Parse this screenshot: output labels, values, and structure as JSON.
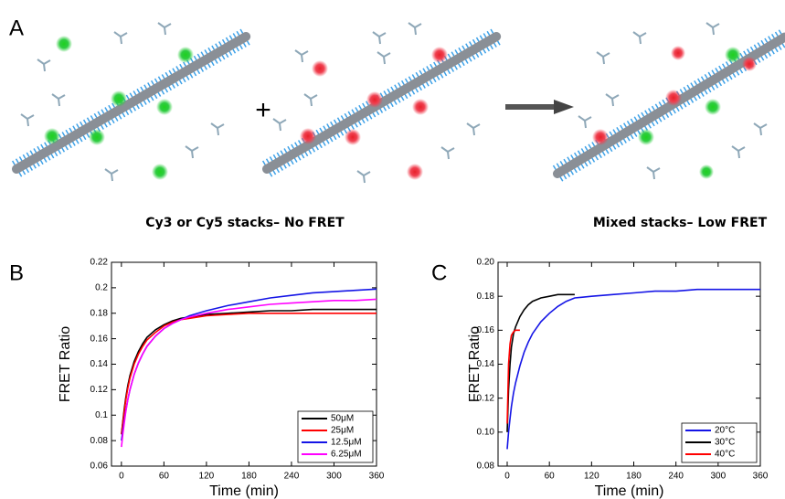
{
  "panel_a": {
    "label": "A",
    "plus": "+",
    "captions": [
      "Cy3 or Cy5 stacks– No FRET",
      "Mixed stacks– Low FRET"
    ]
  },
  "chart_data": [
    {
      "type": "line",
      "panel_label": "B",
      "x_label": "Time (min)",
      "y_label": "FRET Ratio",
      "x": [
        0,
        2,
        4,
        6,
        9,
        12,
        18,
        24,
        30,
        36,
        48,
        60,
        72,
        84,
        96,
        120,
        150,
        180,
        210,
        240,
        270,
        300,
        330,
        360
      ],
      "series": [
        {
          "name": "50μM",
          "color": "#000000",
          "values": [
            0.085,
            0.095,
            0.105,
            0.113,
            0.123,
            0.131,
            0.142,
            0.15,
            0.156,
            0.161,
            0.167,
            0.171,
            0.174,
            0.176,
            0.177,
            0.179,
            0.18,
            0.181,
            0.182,
            0.182,
            0.183,
            0.183,
            0.183,
            0.183
          ]
        },
        {
          "name": "25μM",
          "color": "#ff0000",
          "values": [
            0.085,
            0.094,
            0.103,
            0.111,
            0.121,
            0.129,
            0.14,
            0.148,
            0.154,
            0.159,
            0.165,
            0.17,
            0.173,
            0.175,
            0.176,
            0.178,
            0.179,
            0.18,
            0.18,
            0.18,
            0.18,
            0.18,
            0.18,
            0.18
          ]
        },
        {
          "name": "12.5μM",
          "color": "#1414e6",
          "values": [
            0.08,
            0.088,
            0.096,
            0.103,
            0.112,
            0.12,
            0.132,
            0.141,
            0.148,
            0.154,
            0.162,
            0.168,
            0.172,
            0.175,
            0.178,
            0.182,
            0.186,
            0.189,
            0.192,
            0.194,
            0.196,
            0.197,
            0.198,
            0.199
          ]
        },
        {
          "name": "6.25μM",
          "color": "#ff00ff",
          "values": [
            0.075,
            0.085,
            0.094,
            0.102,
            0.112,
            0.12,
            0.132,
            0.141,
            0.148,
            0.154,
            0.162,
            0.168,
            0.172,
            0.175,
            0.177,
            0.18,
            0.183,
            0.185,
            0.187,
            0.188,
            0.189,
            0.19,
            0.19,
            0.191
          ]
        }
      ],
      "xlim": [
        -14,
        360
      ],
      "ylim": [
        0.06,
        0.22
      ],
      "xticks": [
        0,
        60,
        120,
        180,
        240,
        300,
        360
      ],
      "yticks": [
        0.06,
        0.08,
        0.1,
        0.12,
        0.14,
        0.16,
        0.18,
        0.2,
        0.22
      ],
      "legend": "lower right"
    },
    {
      "type": "line",
      "panel_label": "C",
      "x_label": "Time (min)",
      "y_label": "FRET Ratio",
      "x": [
        0,
        2,
        4,
        6,
        9,
        12,
        18,
        24,
        30,
        36,
        48,
        60,
        72,
        84,
        96,
        120,
        150,
        180,
        210,
        240,
        270,
        300,
        330,
        360
      ],
      "series": [
        {
          "name": "20°C",
          "color": "#1414e6",
          "values": [
            0.09,
            0.1,
            0.108,
            0.115,
            0.123,
            0.129,
            0.139,
            0.147,
            0.153,
            0.158,
            0.165,
            0.17,
            0.174,
            0.177,
            0.179,
            0.18,
            0.181,
            0.182,
            0.183,
            0.183,
            0.184,
            0.184,
            0.184,
            0.184
          ]
        },
        {
          "name": "30°C",
          "color": "#000000",
          "values": [
            0.1,
            0.125,
            0.14,
            0.15,
            0.158,
            0.162,
            0.168,
            0.172,
            0.175,
            0.177,
            0.179,
            0.18,
            0.181,
            0.181,
            0.181,
            null,
            null,
            null,
            null,
            null,
            null,
            null,
            null,
            null
          ]
        },
        {
          "name": "40°C",
          "color": "#ff0000",
          "values": [
            0.105,
            0.14,
            0.152,
            0.157,
            0.159,
            0.16,
            0.16,
            null,
            null,
            null,
            null,
            null,
            null,
            null,
            null,
            null,
            null,
            null,
            null,
            null,
            null,
            null,
            null,
            null
          ]
        }
      ],
      "xlim": [
        -13,
        360
      ],
      "ylim": [
        0.08,
        0.2
      ],
      "xticks": [
        0,
        60,
        120,
        180,
        240,
        300,
        360
      ],
      "yticks": [
        0.08,
        {
          "value": 0.1,
          "label": "0.10"
        },
        0.12,
        0.14,
        0.16,
        0.18,
        {
          "value": 0.2,
          "label": "0.20"
        }
      ],
      "legend": "lower right"
    }
  ]
}
